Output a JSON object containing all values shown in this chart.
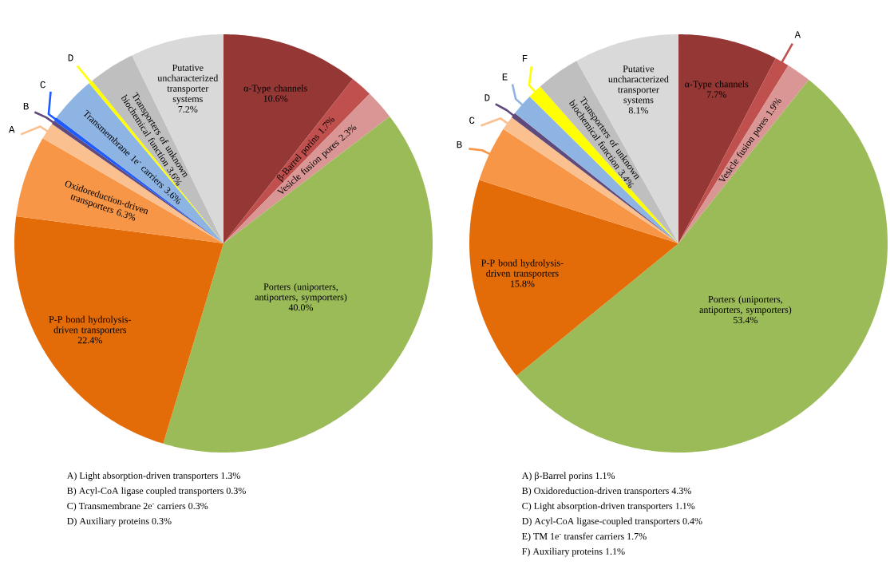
{
  "chart_data": [
    {
      "type": "pie",
      "categories": [
        "α-Type channels",
        "β-Barrel porins",
        "Vesicle fusion pores",
        "Porters (uniporters, antiporters, symporters)",
        "P-P bond hydrolysis-driven transporters",
        "Oxidoreduction-driven transporters",
        "A",
        "B",
        "C",
        "Transmembrane 1e$^{-}$ carriers",
        "D",
        "Transporters of unknown biochemical function",
        "Putative uncharacterized transporter systems"
      ],
      "values": [
        10.6,
        1.7,
        2.3,
        40.0,
        22.4,
        6.3,
        1.3,
        0.3,
        0.3,
        3.6,
        0.3,
        3.6,
        7.2
      ],
      "value_labels": [
        "10.6%",
        "1.7%",
        "2.3%",
        "40.0%",
        "22.4%",
        "6.3%",
        null,
        null,
        null,
        "3.6%",
        null,
        "3.6%",
        "7.2%"
      ],
      "colors": [
        "#953735",
        "#c0504d",
        "#d99694",
        "#9bbb59",
        "#e36c09",
        "#f79646",
        "#fac090",
        "#604a7b",
        "#1f5cff",
        "#8eb4e3",
        "#ffff00",
        "#bfbfbf",
        "#d9d9d9"
      ],
      "annotations": [
        "A) Light absorption-driven transporters 1.3%",
        "B) Acyl-CoA ligase coupled transporters 0.3%",
        "C) Transmembrane 2e$^{-}$ carriers 0.3%",
        "D) Auxiliary proteins 0.3%"
      ]
    },
    {
      "type": "pie",
      "categories": [
        "α-Type channels",
        "A",
        "Vesicle fusion pores",
        "Porters (uniporters, antiporters, symporters)",
        "P-P bond hydrolysis-driven transporters",
        "B",
        "C",
        "D",
        "E",
        "F",
        "Transporters of unknown biochemical function",
        "Putative uncharacterized transporter systems"
      ],
      "values": [
        7.7,
        1.1,
        1.9,
        53.4,
        15.8,
        4.3,
        1.1,
        0.4,
        1.7,
        1.1,
        3.4,
        8.1
      ],
      "value_labels": [
        "7.7%",
        null,
        "1.9%",
        "53.4%",
        "15.8%",
        null,
        null,
        null,
        null,
        null,
        "3.4%",
        "8.1%"
      ],
      "colors": [
        "#953735",
        "#c0504d",
        "#d99694",
        "#9bbb59",
        "#e36c09",
        "#f79646",
        "#fac090",
        "#604a7b",
        "#8eb4e3",
        "#ffff00",
        "#bfbfbf",
        "#d9d9d9"
      ],
      "annotations": [
        "A) β-Barrel porins 1.1%",
        "B) Oxidoreduction-driven transporters 4.3%",
        "C) Light absorption-driven transporters 1.1%",
        "D) Acyl-CoA ligase-coupled transporters 0.4%",
        "E) TM 1e$^{-}$ transfer carriers 1.7%",
        "F) Auxiliary proteins 1.1%"
      ]
    }
  ]
}
